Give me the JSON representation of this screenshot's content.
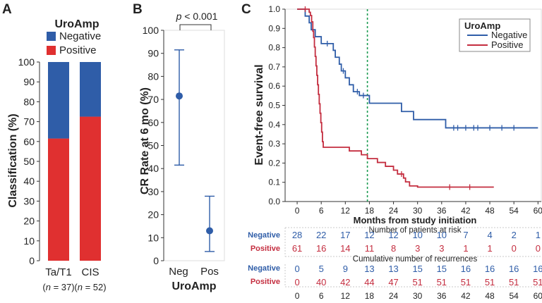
{
  "colors": {
    "negative": "#2F5DA8",
    "positive": "#E03030",
    "km_negative": "#2F5DA8",
    "km_positive": "#C42D3F",
    "dashed": "#1A9A50",
    "axis": "#333333"
  },
  "panel_labels": {
    "a": "A",
    "b": "B",
    "c": "C"
  },
  "chart_data": [
    {
      "type": "bar",
      "panel": "A",
      "stacked": true,
      "legend_title": "UroAmp",
      "legend_position": "top",
      "ylabel": "Classification (%)",
      "ylim": [
        0,
        100
      ],
      "yticks": [
        0,
        10,
        20,
        30,
        40,
        50,
        60,
        70,
        80,
        90,
        100
      ],
      "categories": [
        "Ta/T1",
        "CIS"
      ],
      "category_notes": [
        "(n = 37)",
        "(n = 52)"
      ],
      "series": [
        {
          "name": "Positive",
          "values": [
            61.5,
            72.5
          ]
        },
        {
          "name": "Negative",
          "values": [
            38.5,
            27.5
          ]
        }
      ]
    },
    {
      "type": "scatter",
      "panel": "B",
      "ylabel": "CR Rate at 6 mo (%)",
      "xlabel": "UroAmp",
      "ylim": [
        0,
        100
      ],
      "yticks": [
        0,
        10,
        20,
        30,
        40,
        50,
        60,
        70,
        80,
        90,
        100
      ],
      "categories": [
        "Neg",
        "Pos"
      ],
      "points": [
        {
          "category": "Neg",
          "estimate": 71.5,
          "lower": 41.5,
          "upper": 91.5
        },
        {
          "category": "Pos",
          "estimate": 13,
          "lower": 4,
          "upper": 28
        }
      ],
      "annotation": {
        "prefix": "p",
        "rest": " < 0.001"
      }
    },
    {
      "type": "line",
      "panel": "C",
      "ylabel": "Event-free survival",
      "xlabel": "Months from study initiation",
      "xlim": [
        -3,
        61
      ],
      "ylim": [
        0,
        1
      ],
      "xticks": [
        0,
        6,
        12,
        18,
        24,
        30,
        36,
        42,
        48,
        54,
        60
      ],
      "yticks": [
        0.0,
        0.1,
        0.2,
        0.3,
        0.4,
        0.5,
        0.6,
        0.7,
        0.8,
        0.9,
        1.0
      ],
      "legend_title": "UroAmp",
      "legend_position": "top-right",
      "reference_line_x": 17.5,
      "series": [
        {
          "name": "Negative",
          "steps": [
            [
              0,
              1.0
            ],
            [
              2,
              0.964
            ],
            [
              3,
              0.929
            ],
            [
              3.5,
              0.893
            ],
            [
              4.5,
              0.857
            ],
            [
              6,
              0.821
            ],
            [
              9,
              0.786
            ],
            [
              9.5,
              0.75
            ],
            [
              10.5,
              0.714
            ],
            [
              11,
              0.679
            ],
            [
              12,
              0.643
            ],
            [
              13,
              0.607
            ],
            [
              14,
              0.571
            ],
            [
              15.5,
              0.551
            ],
            [
              18,
              0.511
            ],
            [
              26,
              0.468
            ],
            [
              29,
              0.426
            ],
            [
              37,
              0.383
            ],
            [
              60,
              0.383
            ]
          ],
          "censor": [
            7.5,
            11.5,
            15,
            16.5,
            39,
            40,
            42,
            44,
            45,
            48,
            51,
            54
          ]
        },
        {
          "name": "Positive",
          "steps": [
            [
              0,
              1.0
            ],
            [
              3,
              0.984
            ],
            [
              3.3,
              0.967
            ],
            [
              3.6,
              0.934
            ],
            [
              3.9,
              0.885
            ],
            [
              4.1,
              0.852
            ],
            [
              4.3,
              0.803
            ],
            [
              4.5,
              0.754
            ],
            [
              4.7,
              0.705
            ],
            [
              4.9,
              0.656
            ],
            [
              5.1,
              0.607
            ],
            [
              5.3,
              0.557
            ],
            [
              5.5,
              0.508
            ],
            [
              5.7,
              0.459
            ],
            [
              5.9,
              0.41
            ],
            [
              6.1,
              0.361
            ],
            [
              6.3,
              0.311
            ],
            [
              6.5,
              0.282
            ],
            [
              13,
              0.263
            ],
            [
              16,
              0.243
            ],
            [
              17.5,
              0.223
            ],
            [
              20,
              0.203
            ],
            [
              22,
              0.183
            ],
            [
              24,
              0.163
            ],
            [
              25,
              0.143
            ],
            [
              26.5,
              0.122
            ],
            [
              27,
              0.102
            ],
            [
              28,
              0.081
            ],
            [
              30,
              0.075
            ],
            [
              49,
              0.075
            ]
          ],
          "censor": [
            2,
            26,
            38,
            43
          ]
        }
      ],
      "risk_table": {
        "title": "Number of patients at risk",
        "rows": [
          {
            "label": "Negative",
            "values": [
              "28",
              "22",
              "17",
              "12",
              "12",
              "10",
              "10",
              "7",
              "4",
              "2",
              "1"
            ]
          },
          {
            "label": "Positive",
            "values": [
              "61",
              "16",
              "14",
              "11",
              "8",
              "3",
              "3",
              "1",
              "1",
              "0",
              "0"
            ]
          }
        ]
      },
      "recurrence_table": {
        "title": "Cumulative number of recurrences",
        "rows": [
          {
            "label": "Negative",
            "values": [
              "0",
              "5",
              "9",
              "13",
              "13",
              "15",
              "15",
              "16",
              "16",
              "16",
              "16"
            ]
          },
          {
            "label": "Positive",
            "values": [
              "0",
              "40",
              "42",
              "44",
              "47",
              "51",
              "51",
              "51",
              "51",
              "51",
              "51"
            ]
          }
        ]
      }
    }
  ]
}
